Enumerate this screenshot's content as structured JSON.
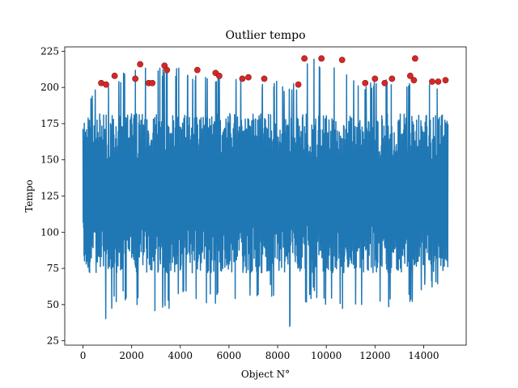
{
  "chart_data": {
    "type": "line",
    "title": "Outlier tempo",
    "xlabel": "Object N°",
    "ylabel": "Tempo",
    "xlim": [
      -750,
      15750
    ],
    "ylim": [
      22,
      228
    ],
    "x_ticks": [
      0,
      2000,
      4000,
      6000,
      8000,
      10000,
      12000,
      14000
    ],
    "y_ticks": [
      25,
      50,
      75,
      100,
      125,
      150,
      175,
      200,
      225
    ],
    "grid": false,
    "legend": "none",
    "series": [
      {
        "kind": "line",
        "color": "#1f77b4",
        "x_range": [
          0,
          14999
        ],
        "typical_band": [
          72,
          182
        ],
        "upper_envelope": [
          [
            0,
            182
          ],
          [
            400,
            200
          ],
          [
            800,
            203
          ],
          [
            1300,
            208
          ],
          [
            2300,
            216
          ],
          [
            3300,
            215
          ],
          [
            4700,
            212
          ],
          [
            5400,
            210
          ],
          [
            6700,
            207
          ],
          [
            7400,
            206
          ],
          [
            8900,
            203
          ],
          [
            9100,
            220
          ],
          [
            9800,
            220
          ],
          [
            10600,
            219
          ],
          [
            11600,
            204
          ],
          [
            12000,
            206
          ],
          [
            12700,
            206
          ],
          [
            13500,
            208
          ],
          [
            13600,
            220
          ],
          [
            14400,
            204
          ],
          [
            14999,
            205
          ]
        ],
        "lower_envelope": [
          [
            0,
            72
          ],
          [
            600,
            55
          ],
          [
            900,
            36
          ],
          [
            1500,
            55
          ],
          [
            2800,
            44
          ],
          [
            3700,
            48
          ],
          [
            4300,
            55
          ],
          [
            5200,
            50
          ],
          [
            6200,
            52
          ],
          [
            7100,
            50
          ],
          [
            7700,
            56
          ],
          [
            8400,
            38
          ],
          [
            8550,
            31
          ],
          [
            9400,
            55
          ],
          [
            10700,
            44
          ],
          [
            11600,
            50
          ],
          [
            12600,
            48
          ],
          [
            13300,
            50
          ],
          [
            14100,
            57
          ],
          [
            14999,
            66
          ]
        ]
      },
      {
        "kind": "scatter",
        "color": "#d62728",
        "name": "",
        "points": [
          [
            750,
            203
          ],
          [
            950,
            202
          ],
          [
            1300,
            208
          ],
          [
            2150,
            206
          ],
          [
            2350,
            216
          ],
          [
            2700,
            203
          ],
          [
            2850,
            203
          ],
          [
            3350,
            215
          ],
          [
            3450,
            212
          ],
          [
            4700,
            212
          ],
          [
            5450,
            210
          ],
          [
            5600,
            208
          ],
          [
            6550,
            206
          ],
          [
            6800,
            207
          ],
          [
            7450,
            206
          ],
          [
            8850,
            202
          ],
          [
            9100,
            220
          ],
          [
            9800,
            220
          ],
          [
            10650,
            219
          ],
          [
            11600,
            203
          ],
          [
            12000,
            206
          ],
          [
            12400,
            203
          ],
          [
            12700,
            206
          ],
          [
            13450,
            208
          ],
          [
            13600,
            205
          ],
          [
            13650,
            220
          ],
          [
            14350,
            204
          ],
          [
            14600,
            204
          ],
          [
            14900,
            205
          ]
        ]
      }
    ]
  }
}
